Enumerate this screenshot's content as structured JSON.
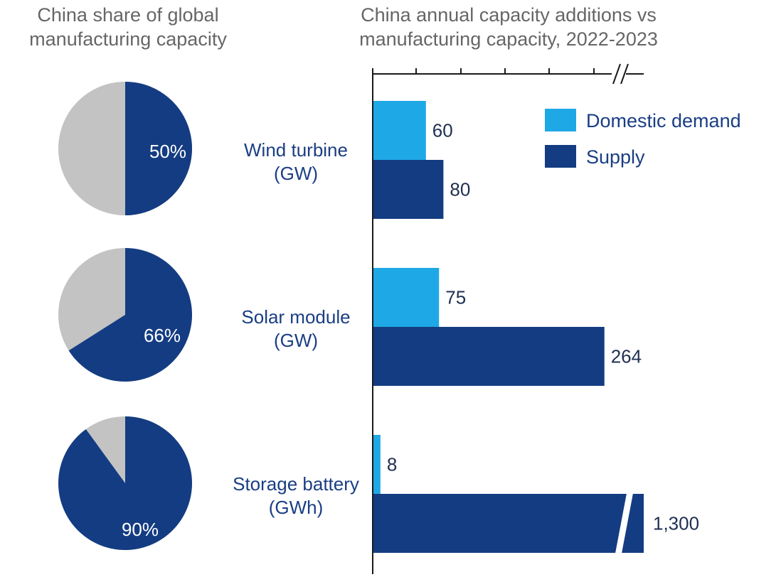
{
  "pie_title": "China share of global manufacturing capacity",
  "bar_title": "China annual capacity additions vs manufacturing capacity, 2022-2023",
  "colors": {
    "domestic_demand": "#1fa8e6",
    "supply": "#143c82",
    "pie_other": "#c3c3c3",
    "text": "#1a3e84",
    "title": "#666666"
  },
  "chart_data": [
    {
      "type": "pie",
      "title": "China share of global manufacturing capacity",
      "slices": [
        {
          "category": "Wind turbine (GW)",
          "value": 50,
          "label": "50%"
        },
        {
          "category": "Solar module (GW)",
          "value": 66,
          "label": "66%"
        },
        {
          "category": "Storage battery (GWh)",
          "value": 90,
          "label": "90%"
        }
      ]
    },
    {
      "type": "bar",
      "orientation": "horizontal",
      "title": "China annual capacity additions vs manufacturing capacity, 2022-2023",
      "categories": [
        {
          "name": "Wind turbine",
          "unit": "(GW)"
        },
        {
          "name": "Solar module",
          "unit": "(GW)"
        },
        {
          "name": "Storage battery",
          "unit": "(GWh)"
        }
      ],
      "series": [
        {
          "name": "Domestic demand",
          "values": [
            60,
            75,
            8
          ],
          "labels": [
            "60",
            "75",
            "8"
          ]
        },
        {
          "name": "Supply",
          "values": [
            80,
            264,
            1300
          ],
          "labels": [
            "80",
            "264",
            "1,300"
          ]
        }
      ],
      "axis_break": true,
      "legend_position": "top-right",
      "grid": false
    }
  ]
}
